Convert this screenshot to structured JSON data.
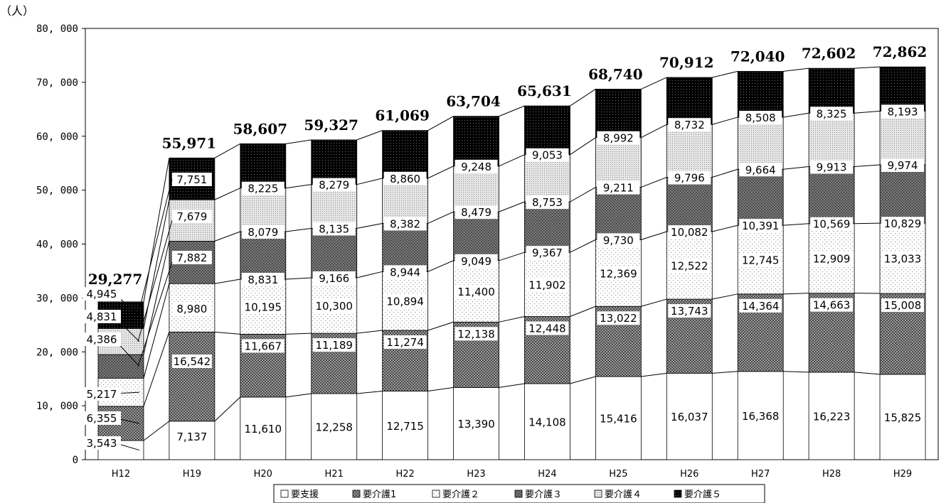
{
  "chart_data": {
    "type": "bar",
    "stacked": true,
    "unit_label": "（人）",
    "ylim": [
      0,
      80000
    ],
    "y_ticks": [
      "0",
      "10, 000",
      "20, 000",
      "30, 000",
      "40, 000",
      "50, 000",
      "60, 000",
      "70, 000",
      "80, 000"
    ],
    "categories": [
      "H12",
      "H19",
      "H20",
      "H21",
      "H22",
      "H23",
      "H24",
      "H25",
      "H26",
      "H27",
      "H28",
      "H29"
    ],
    "series": [
      {
        "name": "要支援",
        "fill": "plain",
        "values": [
          3543,
          7137,
          11610,
          12258,
          12715,
          13390,
          14108,
          15416,
          16037,
          16368,
          16223,
          15825
        ],
        "labels": [
          "3,543",
          "7,137",
          "11,610",
          "12,258",
          "12,715",
          "13,390",
          "14,108",
          "15,416",
          "16,037",
          "16,368",
          "16,223",
          "15,825"
        ]
      },
      {
        "name": "要介護1",
        "fill": "cross-grey",
        "values": [
          6355,
          16542,
          11667,
          11189,
          11274,
          12138,
          12448,
          13022,
          13743,
          14364,
          14663,
          15008
        ],
        "labels": [
          "6,355",
          "16,542",
          "11,667",
          "11,189",
          "11,274",
          "12,138",
          "12,448",
          "13,022",
          "13,743",
          "14,364",
          "14,663",
          "15,008"
        ]
      },
      {
        "name": "要介護２",
        "fill": "dots-light",
        "values": [
          5217,
          8980,
          10195,
          10300,
          10894,
          11400,
          11902,
          12369,
          12522,
          12745,
          12909,
          13033
        ],
        "labels": [
          "5,217",
          "8,980",
          "10,195",
          "10,300",
          "10,894",
          "11,400",
          "11,902",
          "12,369",
          "12,522",
          "12,745",
          "12,909",
          "13,033"
        ]
      },
      {
        "name": "要介護３",
        "fill": "dots-dark",
        "values": [
          4386,
          7882,
          8831,
          9166,
          8944,
          9049,
          9367,
          9730,
          10082,
          10391,
          10569,
          10829
        ],
        "labels": [
          "4,386",
          "7,882",
          "8,831",
          "9,166",
          "8,944",
          "9,049",
          "9,367",
          "9,730",
          "10,082",
          "10,391",
          "10,569",
          "10,829"
        ]
      },
      {
        "name": "要介護４",
        "fill": "grid-light",
        "values": [
          4831,
          7679,
          8079,
          8135,
          8382,
          8479,
          8753,
          9211,
          9796,
          9664,
          9913,
          9974
        ],
        "labels": [
          "4,831",
          "7,679",
          "8,079",
          "8,135",
          "8,382",
          "8,479",
          "8,753",
          "9,211",
          "9,796",
          "9,664",
          "9,913",
          "9,974"
        ]
      },
      {
        "name": "要介護５",
        "fill": "black",
        "values": [
          4945,
          7751,
          8225,
          8279,
          8860,
          9248,
          9053,
          8992,
          8732,
          8508,
          8325,
          8193
        ],
        "labels": [
          "4,945",
          "7,751",
          "8,225",
          "8,279",
          "8,860",
          "9,248",
          "9,053",
          "8,992",
          "8,732",
          "8,508",
          "8,325",
          "8,193"
        ]
      }
    ],
    "totals": [
      29277,
      55971,
      58607,
      59327,
      61069,
      63704,
      65631,
      68740,
      70912,
      72040,
      72602,
      72862
    ],
    "total_labels": [
      "29,277",
      "55,971",
      "58,607",
      "59,327",
      "61,069",
      "63,704",
      "65,631",
      "68,740",
      "70,912",
      "72,040",
      "72,602",
      "72,862"
    ],
    "legend_position": "bottom",
    "grid": false,
    "colors": {
      "axis": "#000000",
      "black": "#000000",
      "grey": "#8c8c8c",
      "white": "#ffffff"
    }
  }
}
